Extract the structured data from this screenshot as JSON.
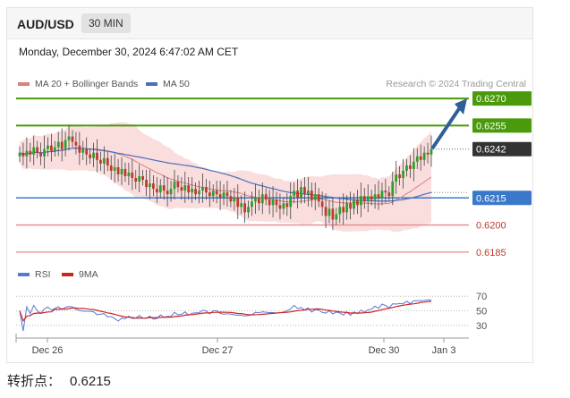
{
  "header": {
    "symbol": "AUD/USD",
    "timeframe": "30 MIN"
  },
  "datetime": "Monday, December 30, 2024 6:47:02 AM CET",
  "legend": {
    "ma_bb": "MA 20 + Bollinger Bands",
    "ma50": "MA 50",
    "rsi": "RSI",
    "ma9": "9MA",
    "copyright": "Research © 2024 Trading Central"
  },
  "pivot": {
    "label": "转折点：",
    "value": "0.6215"
  },
  "colors": {
    "resistance": "#4a9a0c",
    "support": "#e88a8a",
    "pivot": "#3b78c9",
    "current": "#333333",
    "arrow": "#2f5f96",
    "bull": "#2ca02c",
    "bear": "#c0392b",
    "bb_fill": "#f9d7d7",
    "ma20": "#d98080",
    "ma50": "#4a6fc0",
    "rsi": "#5b78d0",
    "rsi_ma": "#cc2222"
  },
  "chart_data": [
    {
      "type": "candlestick",
      "ylim": [
        0.618,
        0.6275
      ],
      "x_ticks": [
        "Dec 26",
        "Dec 27",
        "Dec 30",
        "Jan 3"
      ],
      "levels": [
        {
          "label": "0.6270",
          "value": 0.627,
          "kind": "resistance"
        },
        {
          "label": "0.6255",
          "value": 0.6255,
          "kind": "resistance"
        },
        {
          "label": "0.6242",
          "value": 0.6242,
          "kind": "current"
        },
        {
          "label": "0.6215",
          "value": 0.6215,
          "kind": "pivot"
        },
        {
          "label": "0.6200",
          "value": 0.62,
          "kind": "support"
        },
        {
          "label": "0.6185",
          "value": 0.6185,
          "kind": "support"
        }
      ],
      "series": [
        {
          "name": "MA 20 + Bollinger Bands"
        },
        {
          "name": "MA 50"
        }
      ],
      "close": [
        0.624,
        0.6238,
        0.6241,
        0.6239,
        0.6243,
        0.624,
        0.6238,
        0.6242,
        0.6244,
        0.6241,
        0.6243,
        0.6246,
        0.6242,
        0.6247,
        0.6249,
        0.6246,
        0.6244,
        0.624,
        0.6242,
        0.6239,
        0.6237,
        0.624,
        0.6236,
        0.6234,
        0.6237,
        0.6233,
        0.623,
        0.6232,
        0.6228,
        0.6231,
        0.6227,
        0.6229,
        0.6226,
        0.6224,
        0.6227,
        0.6225,
        0.6221,
        0.6223,
        0.622,
        0.6218,
        0.6222,
        0.6219,
        0.6217,
        0.622,
        0.6224,
        0.6221,
        0.6219,
        0.6222,
        0.6218,
        0.622,
        0.6217,
        0.6219,
        0.6221,
        0.6218,
        0.6216,
        0.6219,
        0.6217,
        0.6215,
        0.6218,
        0.6216,
        0.6213,
        0.6215,
        0.621,
        0.6212,
        0.6207,
        0.621,
        0.6213,
        0.6215,
        0.6212,
        0.6217,
        0.6214,
        0.6211,
        0.6214,
        0.6211,
        0.6209,
        0.6212,
        0.621,
        0.6216,
        0.6219,
        0.6215,
        0.6221,
        0.6217,
        0.6219,
        0.6214,
        0.6217,
        0.6213,
        0.621,
        0.6205,
        0.6209,
        0.6203,
        0.6206,
        0.621,
        0.6207,
        0.6212,
        0.6209,
        0.6214,
        0.6211,
        0.6216,
        0.6213,
        0.6216,
        0.6214,
        0.6217,
        0.6215,
        0.6219,
        0.6218,
        0.6216,
        0.6224,
        0.6228,
        0.6226,
        0.623,
        0.6233,
        0.6231,
        0.6235,
        0.6238,
        0.6236,
        0.624,
        0.6239,
        0.6242
      ],
      "annotation": {
        "type": "arrow",
        "from": 0.6242,
        "to": 0.627
      }
    },
    {
      "type": "line",
      "series": [
        {
          "name": "RSI"
        },
        {
          "name": "9MA"
        }
      ],
      "ylim": [
        20,
        80
      ],
      "y_ticks": [
        30,
        50,
        70
      ]
    }
  ]
}
